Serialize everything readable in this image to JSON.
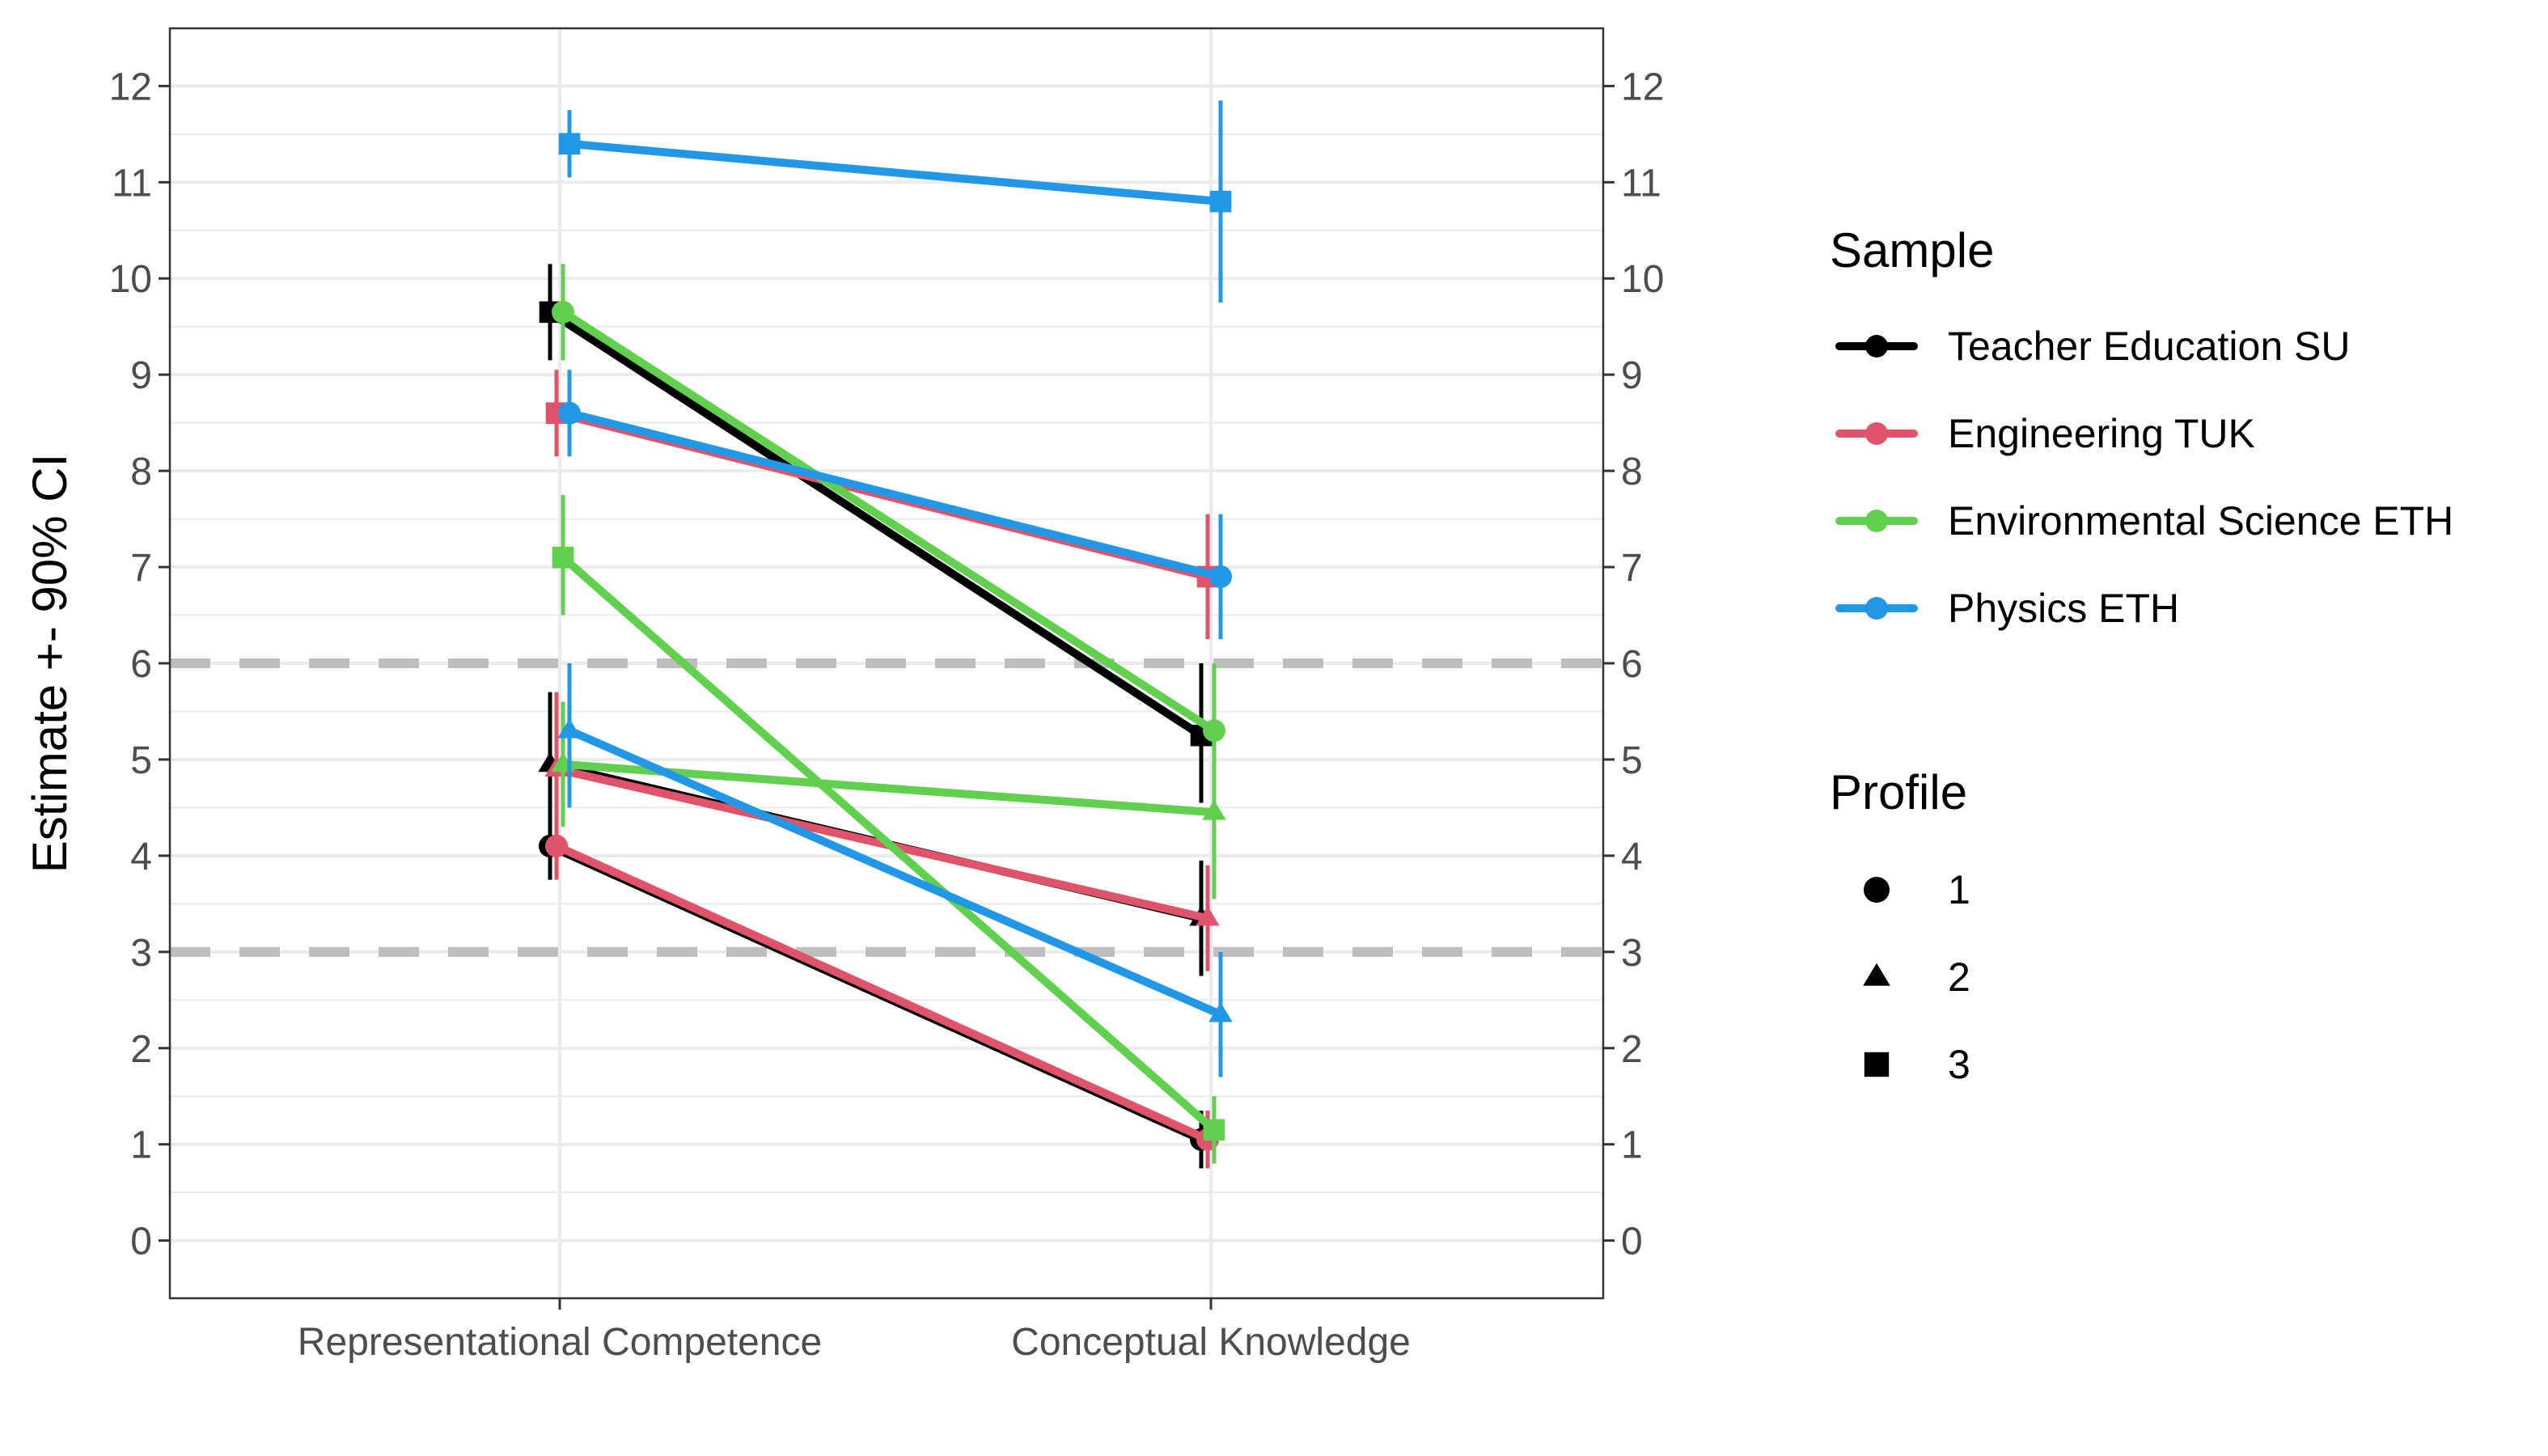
{
  "chart_data": {
    "type": "line",
    "ylabel": "Estimate +- 90% CI",
    "xlabel": "",
    "categories": [
      "Representational Competence",
      "Conceptual Knowledge"
    ],
    "ylim": [
      -0.6,
      12.6
    ],
    "yticks": [
      "0",
      "1",
      "2",
      "3",
      "4",
      "5",
      "6",
      "7",
      "8",
      "9",
      "10",
      "11",
      "12"
    ],
    "reference_lines": [
      3,
      6
    ],
    "grid": true,
    "legend_position": "right",
    "legend_sample_title": "Sample",
    "legend_profile_title": "Profile",
    "samples": [
      {
        "name": "Teacher Education SU",
        "color": "#000000"
      },
      {
        "name": "Engineering TUK",
        "color": "#DF536B"
      },
      {
        "name": "Environmental Science ETH",
        "color": "#61D04F"
      },
      {
        "name": "Physics ETH",
        "color": "#2297E6"
      }
    ],
    "profiles": [
      {
        "name": "1",
        "shape": "circle"
      },
      {
        "name": "2",
        "shape": "triangle"
      },
      {
        "name": "3",
        "shape": "square"
      }
    ],
    "series": [
      {
        "sample": "Teacher Education SU",
        "profile": "1",
        "values": [
          4.1,
          1.05
        ],
        "ci_low": [
          3.75,
          0.75
        ],
        "ci_high": [
          4.45,
          1.35
        ]
      },
      {
        "sample": "Teacher Education SU",
        "profile": "2",
        "values": [
          4.95,
          3.35
        ],
        "ci_low": [
          4.2,
          2.75
        ],
        "ci_high": [
          5.7,
          3.95
        ]
      },
      {
        "sample": "Teacher Education SU",
        "profile": "3",
        "values": [
          9.65,
          5.25
        ],
        "ci_low": [
          9.15,
          4.55
        ],
        "ci_high": [
          10.15,
          6.0
        ]
      },
      {
        "sample": "Engineering TUK",
        "profile": "1",
        "values": [
          4.1,
          1.05
        ],
        "ci_low": [
          3.75,
          0.75
        ],
        "ci_high": [
          4.45,
          1.35
        ]
      },
      {
        "sample": "Engineering TUK",
        "profile": "2",
        "values": [
          4.9,
          3.35
        ],
        "ci_low": [
          4.1,
          2.8
        ],
        "ci_high": [
          5.7,
          3.9
        ]
      },
      {
        "sample": "Engineering TUK",
        "profile": "3",
        "values": [
          8.6,
          6.9
        ],
        "ci_low": [
          8.15,
          6.25
        ],
        "ci_high": [
          9.05,
          7.55
        ]
      },
      {
        "sample": "Environmental Science ETH",
        "profile": "1",
        "values": [
          9.65,
          5.3
        ],
        "ci_low": [
          9.15,
          4.6
        ],
        "ci_high": [
          10.15,
          6.0
        ]
      },
      {
        "sample": "Environmental Science ETH",
        "profile": "2",
        "values": [
          4.95,
          4.45
        ],
        "ci_low": [
          4.3,
          3.55
        ],
        "ci_high": [
          5.6,
          5.35
        ]
      },
      {
        "sample": "Environmental Science ETH",
        "profile": "3",
        "values": [
          7.1,
          1.15
        ],
        "ci_low": [
          6.5,
          0.8
        ],
        "ci_high": [
          7.75,
          1.5
        ]
      },
      {
        "sample": "Physics ETH",
        "profile": "1",
        "values": [
          8.6,
          6.9
        ],
        "ci_low": [
          8.15,
          6.25
        ],
        "ci_high": [
          9.05,
          7.55
        ]
      },
      {
        "sample": "Physics ETH",
        "profile": "2",
        "values": [
          5.3,
          2.35
        ],
        "ci_low": [
          4.5,
          1.7
        ],
        "ci_high": [
          6.0,
          3.0
        ]
      },
      {
        "sample": "Physics ETH",
        "profile": "3",
        "values": [
          11.4,
          10.8
        ],
        "ci_low": [
          11.05,
          9.75
        ],
        "ci_high": [
          11.75,
          11.85
        ]
      }
    ]
  }
}
